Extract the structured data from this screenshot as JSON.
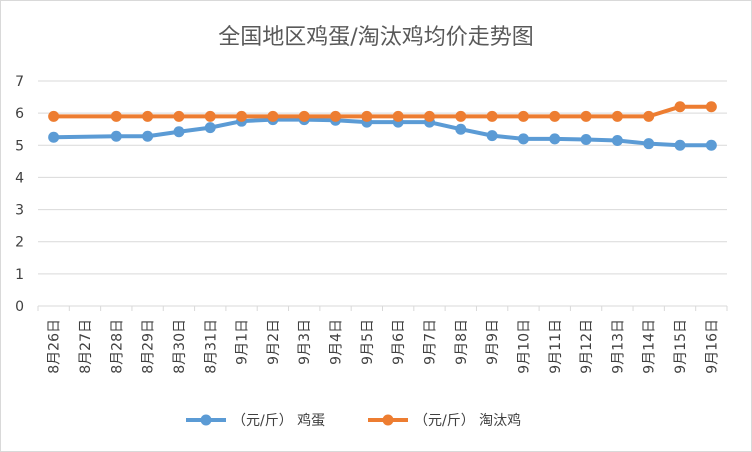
{
  "chart_data": {
    "type": "line",
    "title": "全国地区鸡蛋/淘汰鸡均价走势图",
    "xlabel": "",
    "ylabel": "",
    "ylim": [
      0,
      7
    ],
    "yticks": [
      0,
      1,
      2,
      3,
      4,
      5,
      6,
      7
    ],
    "grid": true,
    "legend_position": "bottom",
    "categories": [
      "8月26日",
      "8月27日",
      "8月28日",
      "8月29日",
      "8月30日",
      "8月31日",
      "9月1日",
      "9月2日",
      "9月3日",
      "9月4日",
      "9月5日",
      "9月6日",
      "9月7日",
      "9月8日",
      "9月9日",
      "9月10日",
      "9月11日",
      "9月12日",
      "9月13日",
      "9月14日",
      "9月15日",
      "9月16日"
    ],
    "series": [
      {
        "name": "（元/斤） 鸡蛋",
        "color": "#5b9bd5",
        "values": [
          5.25,
          null,
          5.28,
          5.28,
          5.42,
          5.55,
          5.75,
          5.8,
          5.8,
          5.78,
          5.72,
          5.72,
          5.72,
          5.5,
          5.3,
          5.2,
          5.2,
          5.18,
          5.15,
          5.05,
          5.0,
          5.0
        ]
      },
      {
        "name": "（元/斤） 淘汰鸡",
        "color": "#ed7d31",
        "values": [
          5.9,
          null,
          5.9,
          5.9,
          5.9,
          5.9,
          5.9,
          5.9,
          5.9,
          5.9,
          5.9,
          5.9,
          5.9,
          5.9,
          5.9,
          5.9,
          5.9,
          5.9,
          5.9,
          5.9,
          6.2,
          6.2
        ]
      }
    ]
  },
  "colors": {
    "grid": "#d9d9d9",
    "text": "#404040",
    "title": "#595959"
  }
}
